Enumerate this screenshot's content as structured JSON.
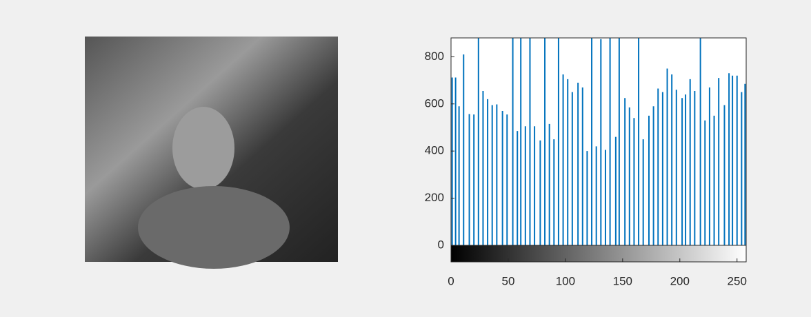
{
  "chart_data": {
    "type": "stem",
    "color": "#0072bd",
    "x": [
      1,
      4,
      7,
      11,
      16,
      20,
      24,
      28,
      32,
      36,
      40,
      45,
      49,
      54,
      58,
      61,
      65,
      69,
      73,
      78,
      82,
      86,
      90,
      94,
      98,
      102,
      106,
      111,
      115,
      119,
      123,
      127,
      131,
      135,
      139,
      144,
      147,
      152,
      156,
      160,
      164,
      168,
      173,
      177,
      181,
      185,
      189,
      193,
      197,
      202,
      205,
      209,
      213,
      218,
      222,
      226,
      230,
      234,
      239,
      243,
      246,
      250,
      254,
      257
    ],
    "values": [
      712,
      712,
      590,
      810,
      557,
      555,
      880,
      655,
      620,
      595,
      598,
      570,
      555,
      880,
      485,
      880,
      505,
      880,
      505,
      445,
      880,
      515,
      450,
      880,
      725,
      705,
      650,
      690,
      670,
      400,
      880,
      420,
      875,
      405,
      880,
      460,
      880,
      625,
      585,
      540,
      880,
      450,
      550,
      590,
      665,
      650,
      750,
      725,
      660,
      625,
      640,
      705,
      655,
      880,
      530,
      670,
      550,
      710,
      595,
      730,
      720,
      720,
      650,
      685
    ],
    "xlim": [
      0,
      258
    ],
    "ylim": [
      0,
      880
    ],
    "xticks": [
      0,
      50,
      100,
      150,
      200,
      250
    ],
    "yticks": [
      0,
      200,
      400,
      600,
      800
    ]
  }
}
